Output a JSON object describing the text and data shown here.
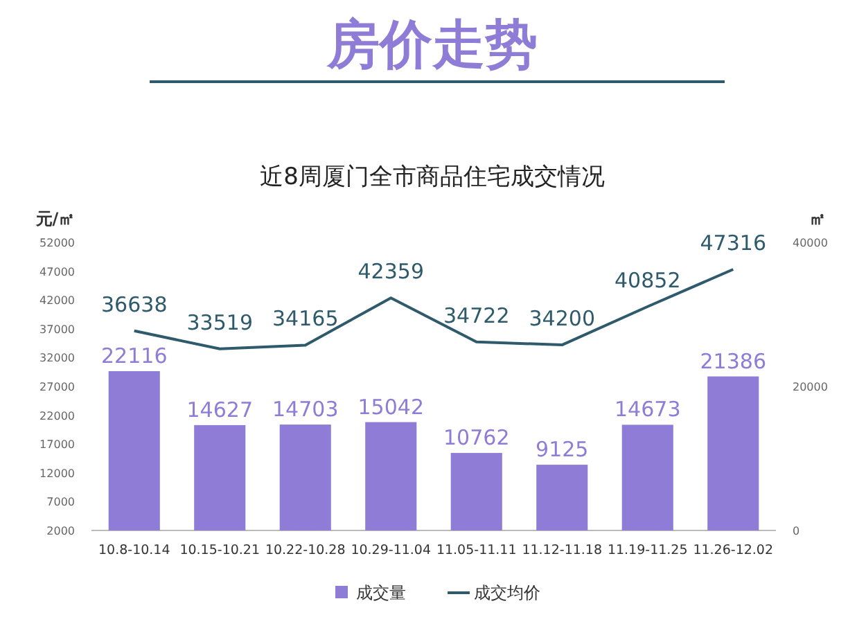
{
  "chart_data": {
    "type": "bar",
    "title": "房价走势",
    "subtitle": "近8周厦门全市商品住宅成交情况",
    "ylabel": "元/㎡",
    "y2label": "㎡",
    "categories": [
      "10.8-10.14",
      "10.15-10.21",
      "10.22-10.28",
      "10.29-11.04",
      "11.05-11.11",
      "11.12-11.18",
      "11.19-11.25",
      "11.26-12.02"
    ],
    "series": [
      {
        "name": "成交量",
        "axis": "y2",
        "color": "#8e7cd6",
        "values": [
          22116,
          14627,
          14703,
          15042,
          10762,
          9125,
          14673,
          21386
        ]
      },
      {
        "name": "成交均价",
        "type": "line",
        "axis": "y",
        "color": "#2e5a6b",
        "values": [
          36638,
          33519,
          34165,
          42359,
          34722,
          34200,
          40852,
          47316
        ]
      }
    ],
    "ylim": [
      2000,
      52000
    ],
    "yticks": [
      2000,
      7000,
      12000,
      17000,
      22000,
      27000,
      32000,
      37000,
      42000,
      47000,
      52000
    ],
    "y2lim": [
      0,
      40000
    ],
    "y2ticks": [
      0,
      20000,
      40000
    ],
    "data_labels": true,
    "legend": "bottom",
    "grid": false,
    "marker": "none",
    "line_style": "solid"
  }
}
